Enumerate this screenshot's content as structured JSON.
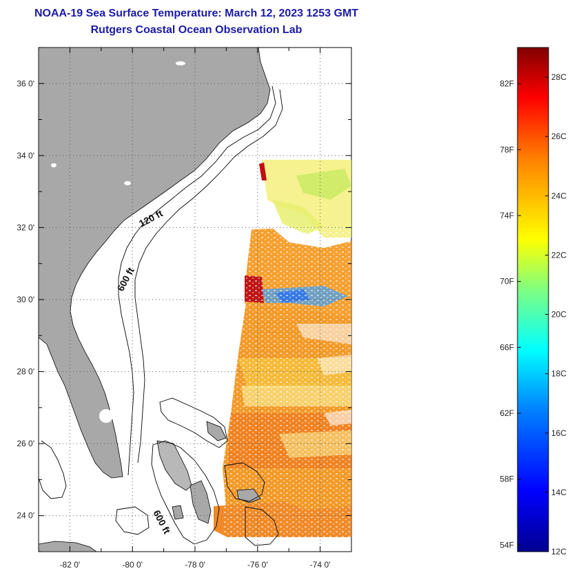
{
  "title": {
    "line1": "NOAA-19 Sea Surface Temperature:  March 12, 2023 1253 GMT",
    "line2": "Rutgers Coastal Ocean Observation Lab"
  },
  "map": {
    "lat_range": [
      23.0,
      37.0
    ],
    "lon_range": [
      -83.0,
      -73.0
    ],
    "lat_ticks": [
      {
        "value": 24,
        "label": "24 0'"
      },
      {
        "value": 26,
        "label": "26 0'"
      },
      {
        "value": 28,
        "label": "28 0'"
      },
      {
        "value": 30,
        "label": "30 0'"
      },
      {
        "value": 32,
        "label": "32 0'"
      },
      {
        "value": 34,
        "label": "34 0'"
      },
      {
        "value": 36,
        "label": "36 0'"
      }
    ],
    "lon_ticks": [
      {
        "value": -82,
        "label": "-82 0'"
      },
      {
        "value": -80,
        "label": "-80 0'"
      },
      {
        "value": -78,
        "label": "-78 0'"
      },
      {
        "value": -76,
        "label": "-76 0'"
      },
      {
        "value": -74,
        "label": "-74 0'"
      }
    ],
    "contour_labels": [
      {
        "text": "120 ft"
      },
      {
        "text": "600 ft"
      },
      {
        "text": "600 ft"
      }
    ],
    "colors": {
      "land": "#a8a8a8",
      "ocean": "#ffffff",
      "grid": "#666666"
    }
  },
  "colorbar": {
    "range_c": [
      12,
      29
    ],
    "celsius_ticks": [
      {
        "value": 12,
        "label": "12C"
      },
      {
        "value": 14,
        "label": "14C"
      },
      {
        "value": 16,
        "label": "16C"
      },
      {
        "value": 18,
        "label": "18C"
      },
      {
        "value": 20,
        "label": "20C"
      },
      {
        "value": 22,
        "label": "22C"
      },
      {
        "value": 24,
        "label": "24C"
      },
      {
        "value": 26,
        "label": "26C"
      },
      {
        "value": 28,
        "label": "28C"
      }
    ],
    "fahrenheit_ticks": [
      {
        "value": 54,
        "label": "54F"
      },
      {
        "value": 58,
        "label": "58F"
      },
      {
        "value": 62,
        "label": "62F"
      },
      {
        "value": 66,
        "label": "66F"
      },
      {
        "value": 70,
        "label": "70F"
      },
      {
        "value": 74,
        "label": "74F"
      },
      {
        "value": 78,
        "label": "78F"
      },
      {
        "value": 82,
        "label": "82F"
      }
    ],
    "stops": [
      "#00008f",
      "#0000ff",
      "#0080ff",
      "#00ffff",
      "#80ff80",
      "#ffff00",
      "#ff8000",
      "#ff0000",
      "#800000"
    ]
  }
}
